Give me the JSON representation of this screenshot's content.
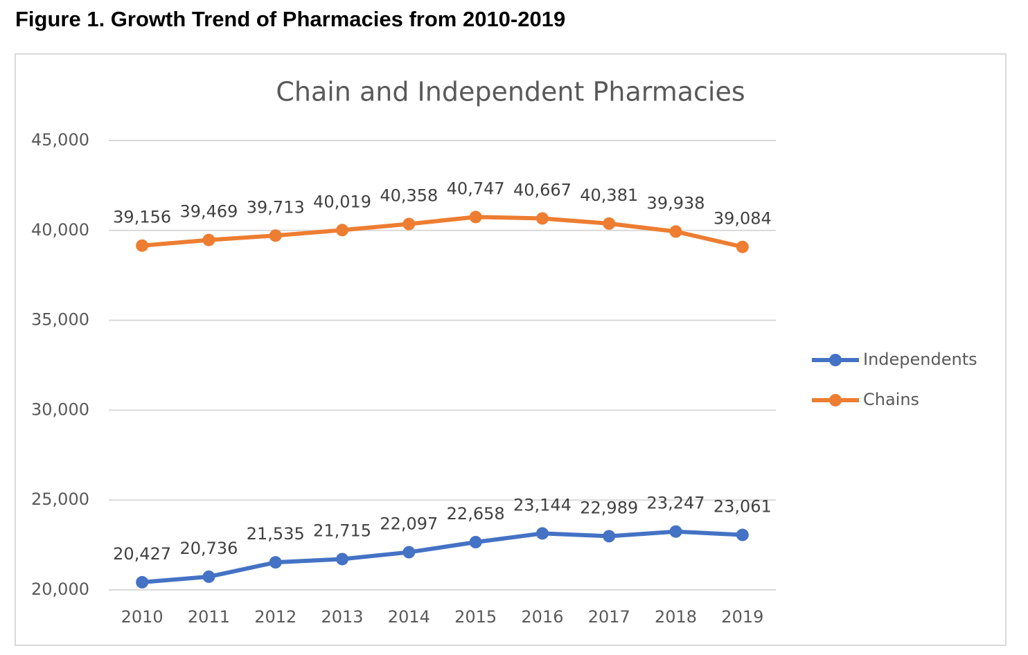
{
  "figure_title": "Figure 1. Growth Trend of Pharmacies from 2010-2019",
  "chart_data": {
    "type": "line",
    "title": "Chain and Independent Pharmacies",
    "categories": [
      "2010",
      "2011",
      "2012",
      "2013",
      "2014",
      "2015",
      "2016",
      "2017",
      "2018",
      "2019"
    ],
    "series": [
      {
        "name": "Independents",
        "color": "#4472c4",
        "values": [
          20427,
          20736,
          21535,
          21715,
          22097,
          22658,
          23144,
          22989,
          23247,
          23061
        ],
        "value_labels": [
          "20,427",
          "20,736",
          "21,535",
          "21,715",
          "22,097",
          "22,658",
          "23,144",
          "22,989",
          "23,247",
          "23,061"
        ]
      },
      {
        "name": "Chains",
        "color": "#ed7d31",
        "values": [
          39156,
          39469,
          39713,
          40019,
          40358,
          40747,
          40667,
          40381,
          39938,
          39084
        ],
        "value_labels": [
          "39,156",
          "39,469",
          "39,713",
          "40,019",
          "40,358",
          "40,747",
          "40,667",
          "40,381",
          "39,938",
          "39,084"
        ]
      }
    ],
    "ylim": [
      20000,
      45000
    ],
    "yticks": [
      {
        "value": 20000,
        "label": "20,000"
      },
      {
        "value": 25000,
        "label": "25,000"
      },
      {
        "value": 30000,
        "label": "30,000"
      },
      {
        "value": 35000,
        "label": "35,000"
      },
      {
        "value": 40000,
        "label": "40,000"
      },
      {
        "value": 45000,
        "label": "45,000"
      }
    ],
    "grid": true,
    "legend": "right"
  }
}
